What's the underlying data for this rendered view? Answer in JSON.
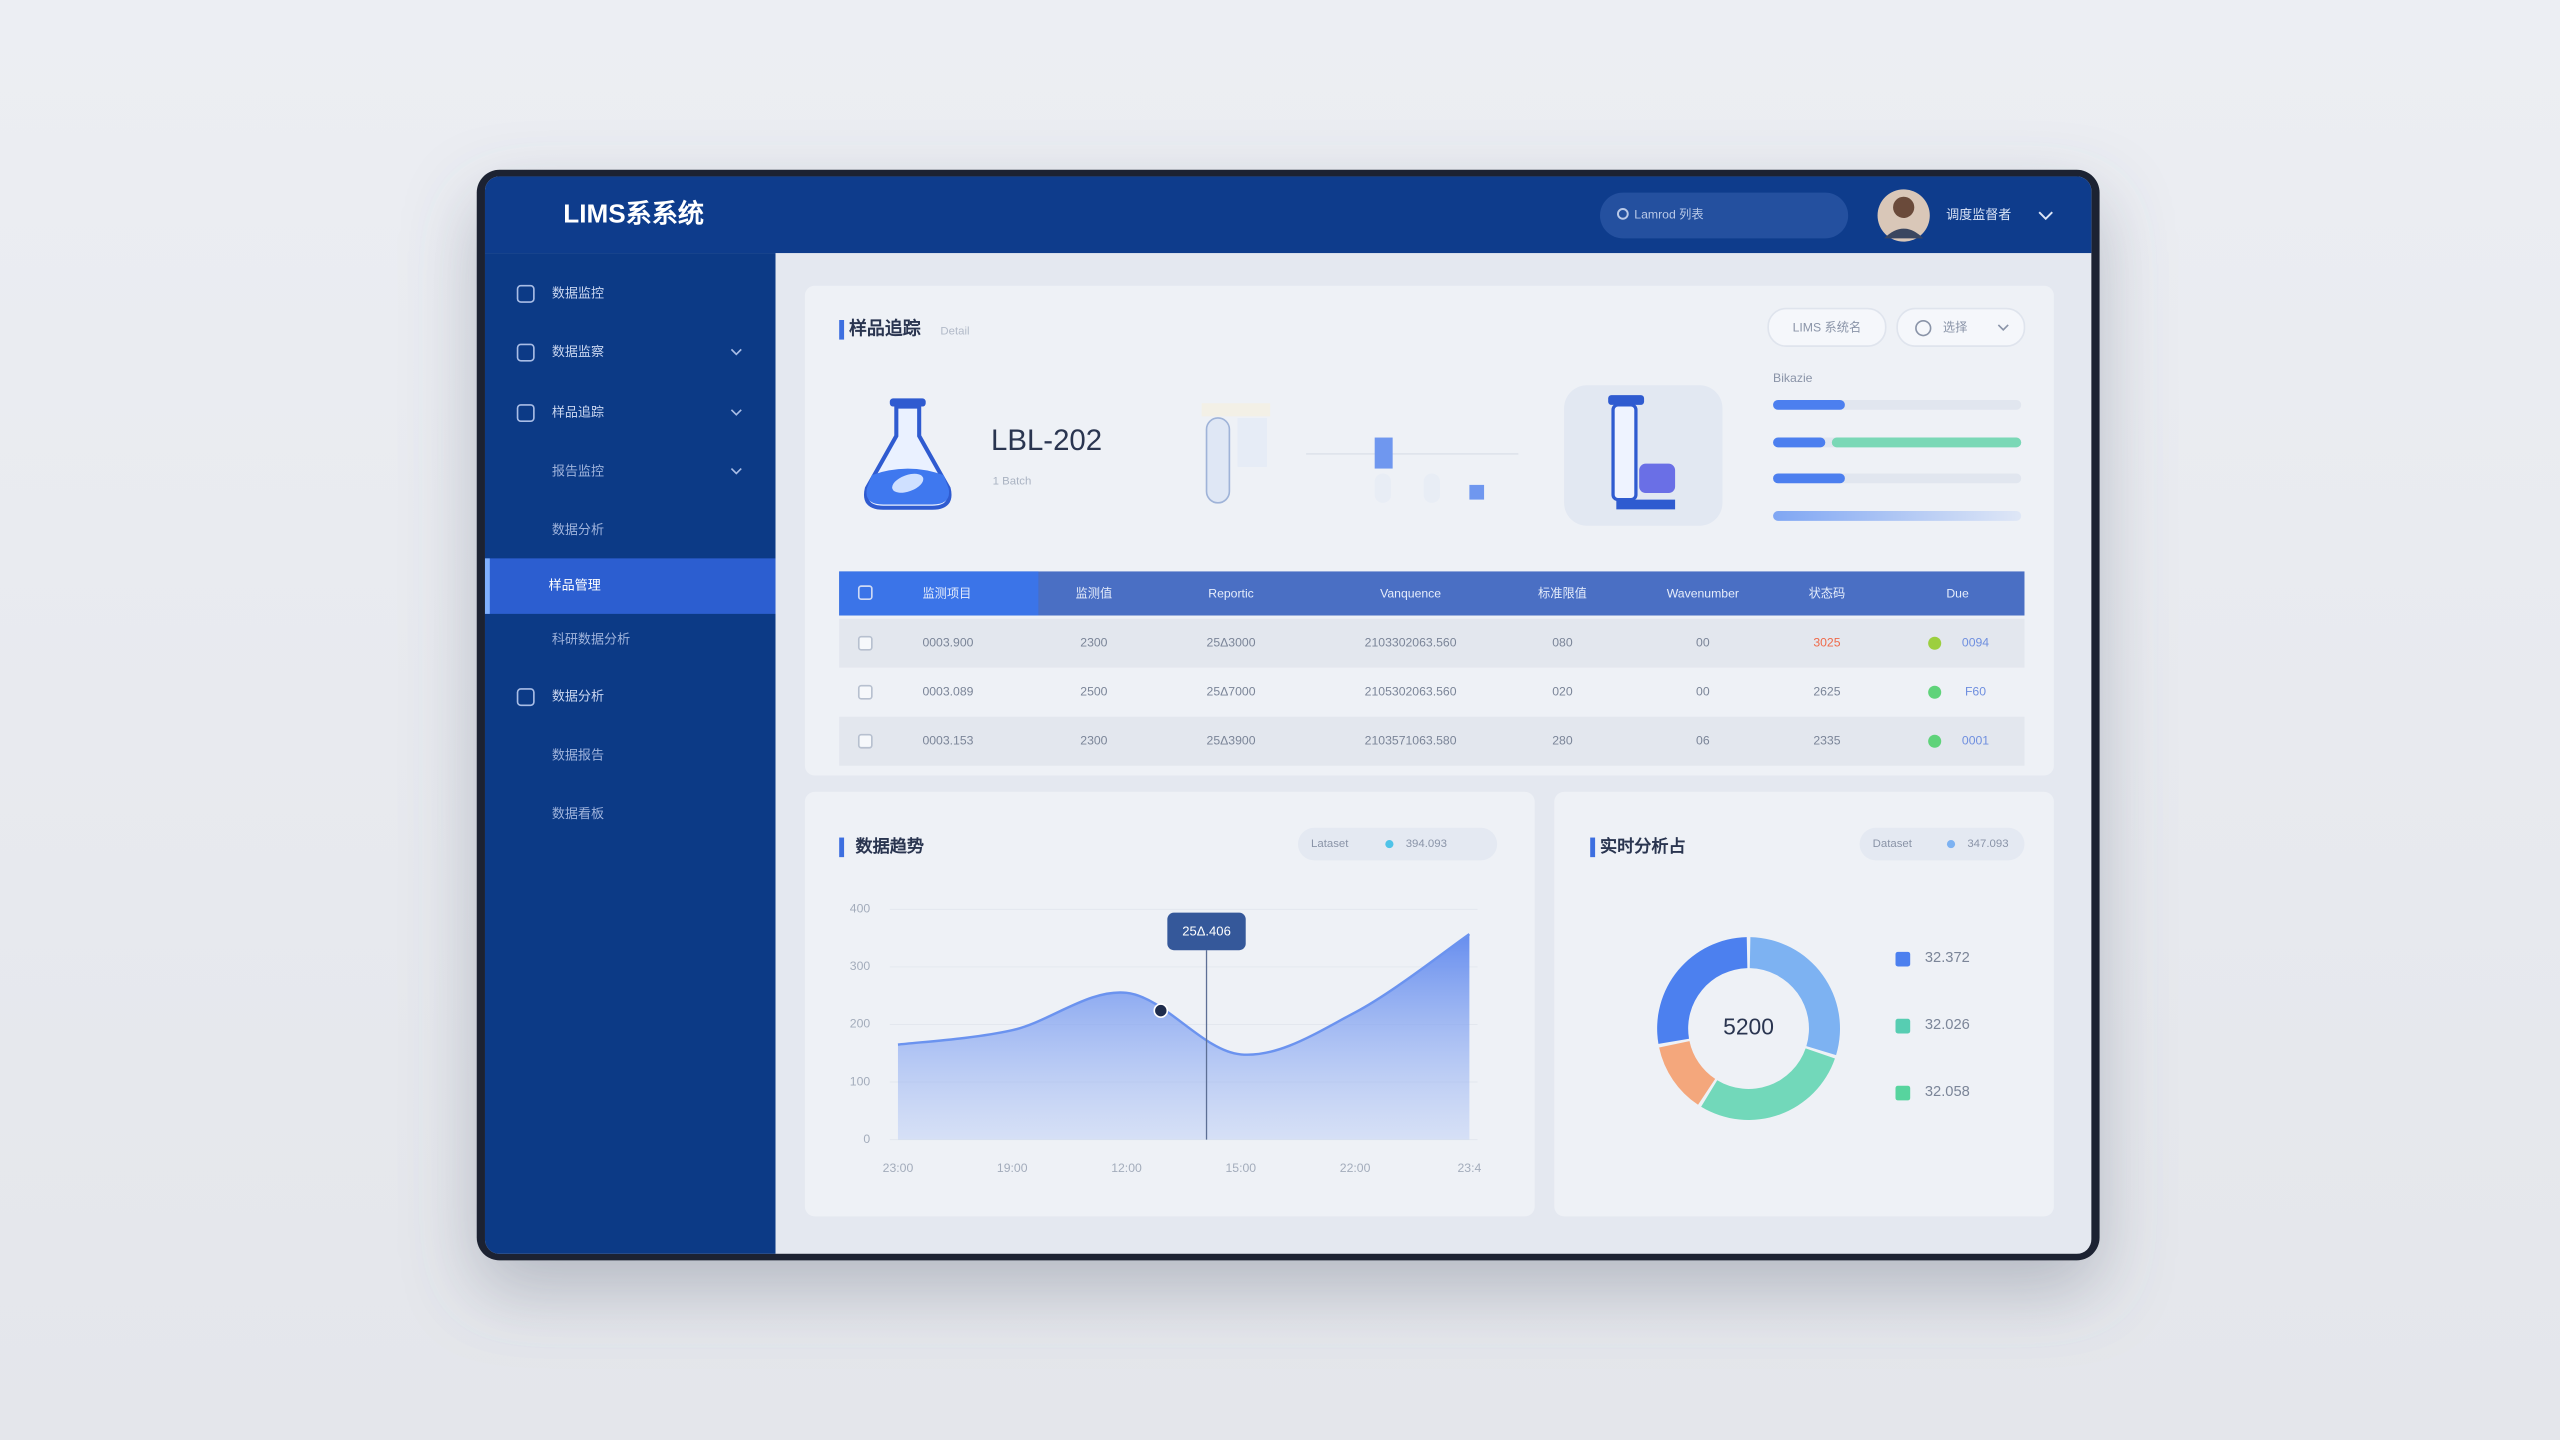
{
  "header": {
    "title": "LIMS系系统",
    "search": "Lamrod 列表",
    "user": "调度监督者"
  },
  "sidebar": {
    "items": [
      "数据监控",
      "数据监察",
      "样品追踪",
      "报告监控",
      "数据分析",
      "样品管理",
      "科研数据分析",
      "数据分析",
      "数据报告",
      "数据看板"
    ]
  },
  "sample": {
    "title": "样品追踪",
    "tag": "Detail",
    "code": "LBL-202",
    "sub": "1 Batch",
    "buttons": [
      "LIMS 系统名",
      "选择"
    ],
    "progress_label": "Bikazie"
  },
  "table": {
    "headers": [
      "监测项目",
      "监测值",
      "Reportic",
      "Vanquence",
      "标准限值",
      "Wavenumber",
      "状态码",
      "Due"
    ],
    "rows": [
      [
        "0003.900",
        "2300",
        "25Δ3000",
        "2103302063.560",
        "080",
        "00",
        "3025",
        "0094"
      ],
      [
        "0003.089",
        "2500",
        "25Δ7000",
        "2105302063.560",
        "020",
        "00",
        "2625",
        "F60"
      ],
      [
        "0003.153",
        "2300",
        "25Δ3900",
        "2103571063.580",
        "280",
        "06",
        "2335",
        "0001"
      ]
    ],
    "status_colors": [
      "#9ccf3f",
      "#5fd37a",
      "#5fd37a"
    ]
  },
  "chart_data": [
    {
      "type": "area",
      "title": "数据趋势",
      "legend_texts": [
        "Lataset",
        "394.093"
      ],
      "categories": [
        "23:00",
        "19:00",
        "12:00",
        "15:00",
        "22:00",
        "23:4"
      ],
      "values": [
        165,
        190,
        255,
        148,
        221,
        357
      ],
      "color": "#6b93ef",
      "ylim": [
        0,
        400
      ],
      "yticks": [
        0,
        100,
        200,
        300,
        400
      ],
      "annotation": "25Δ.406"
    },
    {
      "type": "pie",
      "title": "实时分析占",
      "legend_texts": [
        "Dataset",
        "347.093"
      ],
      "center_label": "5200",
      "values": [
        30,
        29,
        13,
        28
      ],
      "colors": [
        "#7db2f2",
        "#72d8ba",
        "#f4a77c",
        "#4c80ef"
      ],
      "legend": [
        {
          "name": "32.372",
          "color": "#4c80ef"
        },
        {
          "name": "32.026",
          "color": "#57cdb2"
        },
        {
          "name": "32.058",
          "color": "#57d49e"
        }
      ]
    }
  ]
}
